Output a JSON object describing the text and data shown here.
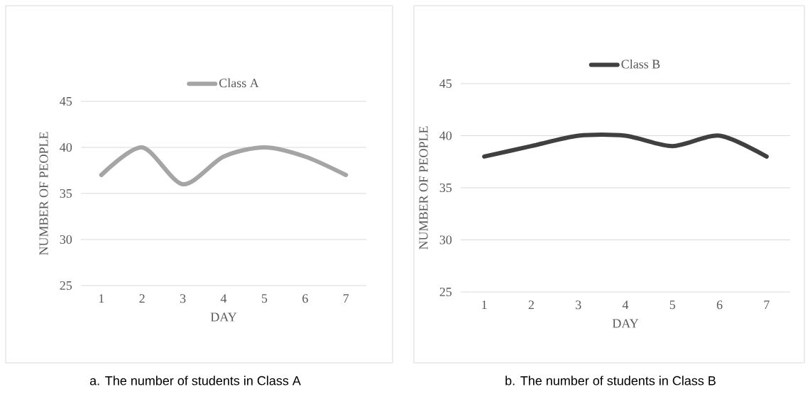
{
  "chart_data": [
    {
      "type": "line",
      "xlabel": "DAY",
      "ylabel": "NUMBER OF PEOPLE",
      "categories": [
        "1",
        "2",
        "3",
        "4",
        "5",
        "6",
        "7"
      ],
      "series": [
        {
          "name": "Class A",
          "color": "#a5a5a5",
          "values": [
            37,
            40,
            36,
            39,
            40,
            39,
            37
          ]
        }
      ],
      "ylim": [
        25,
        45
      ],
      "yticks": [
        25,
        30,
        35,
        40,
        45
      ],
      "grid": "y",
      "legend": "top",
      "annotations": [
        "a. The number of students in Class A"
      ]
    },
    {
      "type": "line",
      "xlabel": "DAY",
      "ylabel": "NUMBER OF PEOPLE",
      "categories": [
        "1",
        "2",
        "3",
        "4",
        "5",
        "6",
        "7"
      ],
      "series": [
        {
          "name": "Class B",
          "color": "#404040",
          "values": [
            38,
            39,
            40,
            40,
            39,
            40,
            38
          ]
        }
      ],
      "ylim": [
        25,
        45
      ],
      "yticks": [
        25,
        30,
        35,
        40,
        45
      ],
      "grid": "y",
      "legend": "top",
      "annotations": [
        "b. The number of students in Class B"
      ]
    }
  ]
}
